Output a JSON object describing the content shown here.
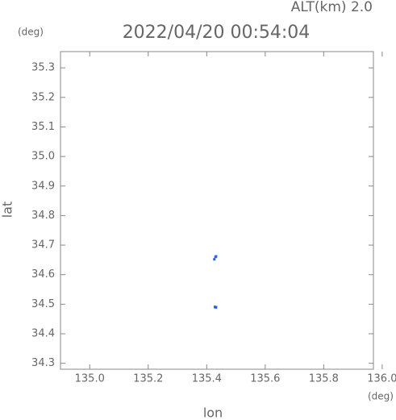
{
  "chart_data": {
    "type": "scatter",
    "title": "2022/04/20 00:54:04",
    "altitude_label": "ALT(km) 2.0",
    "y_unit": "(deg)",
    "x_unit": "(deg)",
    "x_label": "lon",
    "y_label": "lat",
    "color": "#2f62e0",
    "x": [
      135.43,
      135.432,
      135.428,
      135.431,
      135.43,
      135.426,
      135.432
    ],
    "values": [
      34.49,
      34.49,
      34.491,
      34.489,
      34.66,
      34.652,
      34.662
    ],
    "xlim": [
      134.9,
      135.97
    ],
    "xticks": [
      {
        "value": 135,
        "label": "135.0"
      },
      135.2,
      135.4,
      135.6,
      135.8,
      {
        "value": 136,
        "label": "136.0"
      }
    ],
    "ylim": [
      34.28,
      35.355
    ],
    "yticks": [
      34.3,
      34.4,
      34.5,
      34.6,
      34.7,
      34.8,
      34.9,
      {
        "value": 35,
        "label": "35.0"
      },
      35.1,
      35.2,
      35.3
    ]
  }
}
